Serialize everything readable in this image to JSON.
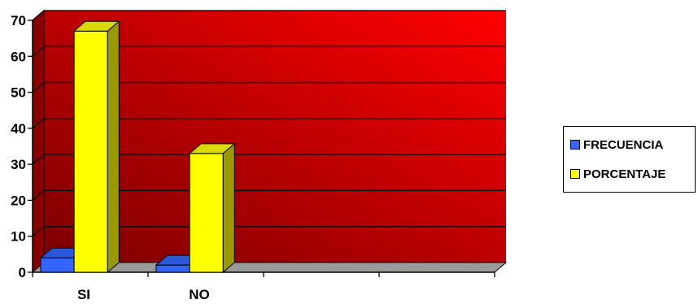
{
  "chart_data": {
    "type": "bar",
    "style": "3d-clustered-column",
    "categories": [
      "SI",
      "NO",
      "",
      ""
    ],
    "series": [
      {
        "name": "FRECUENCIA",
        "color": "#3366FF",
        "values": [
          4,
          2,
          null,
          null
        ]
      },
      {
        "name": "PORCENTAJE",
        "color": "#FFFF00",
        "values": [
          67,
          33,
          null,
          null
        ]
      }
    ],
    "ylim": [
      0,
      70
    ],
    "yticks": [
      0,
      10,
      20,
      30,
      40,
      50,
      60,
      70
    ],
    "grid": true,
    "legend_position": "right",
    "plot_background": "red-gradient",
    "colors": {
      "wall_light": "#FF0000",
      "wall_dark": "#7A0000",
      "floor": "#9A9A9A"
    }
  }
}
